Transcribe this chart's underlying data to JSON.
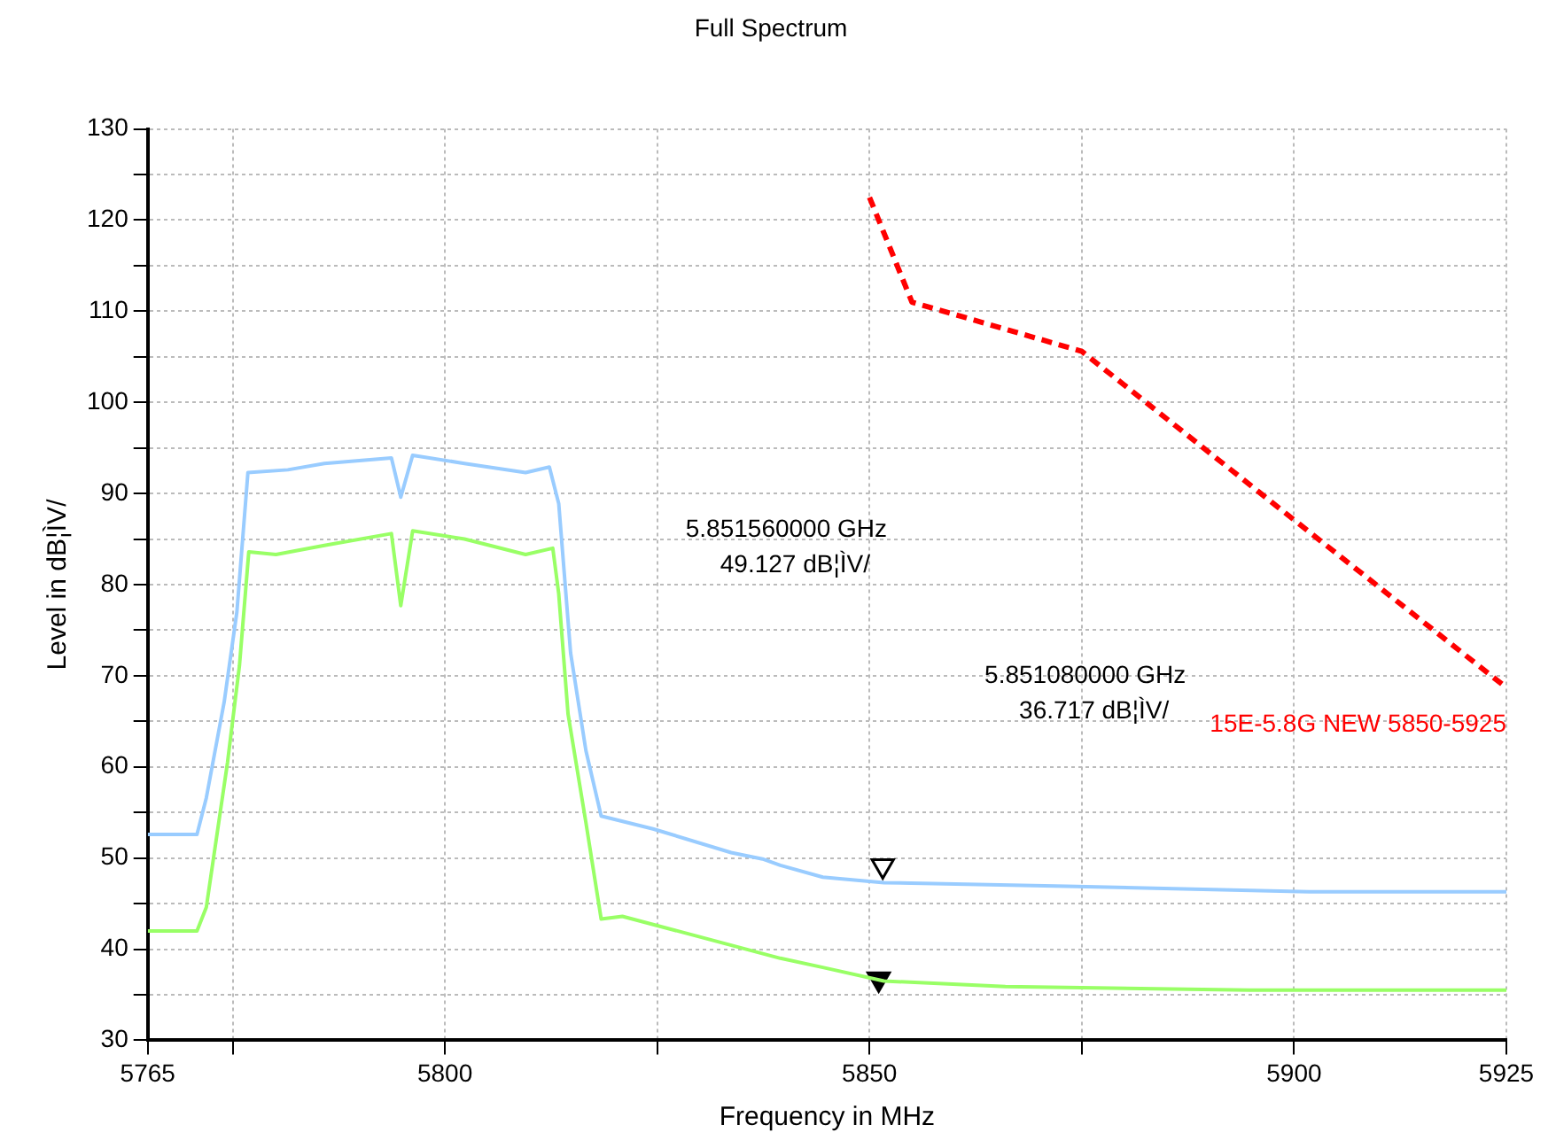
{
  "chart_data": {
    "type": "line",
    "title": "Full Spectrum",
    "xlabel": "Frequency in MHz",
    "ylabel": "Level in dB¦ÌV/",
    "xlim": [
      5765,
      5925
    ],
    "xticks": [
      5765,
      {
        "value": 5775,
        "label": null
      },
      5800,
      {
        "value": 5825,
        "label": null
      },
      5850,
      {
        "value": 5875,
        "label": null
      },
      5900,
      5925
    ],
    "ylim": [
      30,
      130
    ],
    "yticks": [
      30,
      {
        "value": 35,
        "label": null
      },
      40,
      {
        "value": 45,
        "label": null
      },
      50,
      {
        "value": 55,
        "label": null
      },
      60,
      {
        "value": 65,
        "label": null
      },
      70,
      {
        "value": 75,
        "label": null
      },
      80,
      {
        "value": 85,
        "label": null
      },
      90,
      {
        "value": 95,
        "label": null
      },
      100,
      {
        "value": 105,
        "label": null
      },
      110,
      {
        "value": 115,
        "label": null
      },
      120,
      {
        "value": 125,
        "label": null
      },
      130
    ],
    "grid": true,
    "legend": false,
    "marker": "none",
    "line_style": "solid",
    "series": [
      {
        "color": "#99ccff",
        "x": [
          5765,
          5770.8,
          5771.9,
          5774,
          5775.5,
          5776.8,
          5781.5,
          5785.8,
          5793.7,
          5794.8,
          5796.2,
          5802.3,
          5809.5,
          5812.3,
          5813.4,
          5814.8,
          5816.6,
          5818.4,
          5824.5,
          5833.7,
          5837.4,
          5839.5,
          5844.5,
          5851.7,
          5873.2,
          5901.8,
          5925
        ],
        "values": [
          52.6,
          52.6,
          56.6,
          67.1,
          77,
          92.3,
          92.6,
          93.3,
          93.9,
          89.6,
          94.2,
          93.3,
          92.3,
          92.9,
          88.9,
          72.5,
          61.8,
          54.6,
          53.2,
          50.6,
          49.9,
          49.2,
          47.9,
          47.3,
          46.9,
          46.3,
          46.3
        ]
      },
      {
        "color": "#99ff66",
        "x": [
          5765,
          5770.8,
          5771.9,
          5774.4,
          5775.8,
          5776.9,
          5780.1,
          5785.8,
          5793.7,
          5794.8,
          5796.2,
          5802.3,
          5809.5,
          5812.7,
          5813.4,
          5814.5,
          5816.6,
          5818.4,
          5820.9,
          5830.2,
          5839.5,
          5844.5,
          5851.7,
          5866,
          5894.7,
          5925
        ],
        "values": [
          42,
          42,
          44.6,
          60.5,
          71.1,
          83.6,
          83.3,
          84.3,
          85.6,
          77.7,
          85.9,
          85,
          83.3,
          84,
          79,
          65.8,
          53.9,
          43.3,
          43.6,
          41.3,
          39,
          38,
          36.5,
          35.9,
          35.5,
          35.5
        ]
      },
      {
        "name": "15E-5.8G NEW 5850-5925",
        "color": "#ff0000",
        "line_style": "dashed",
        "x": [
          5850,
          5855,
          5875,
          5900,
          5925
        ],
        "values": [
          122.5,
          111,
          105.6,
          87.1,
          68.7
        ]
      },
      {
        "type": "scatter",
        "marker": "triangle",
        "color": "#000000",
        "x": [
          5851.56
        ],
        "values": [
          49.127
        ]
      },
      {
        "type": "scatter",
        "marker": "triangle",
        "color": "#000000",
        "x": [
          5851.08
        ],
        "values": [
          36.717
        ]
      }
    ],
    "annotations": [
      "5.851560000 GHz\n49.127 dB¦ÌV/",
      "5.851080000 GHz\n36.717 dB¦ÌV/"
    ]
  }
}
